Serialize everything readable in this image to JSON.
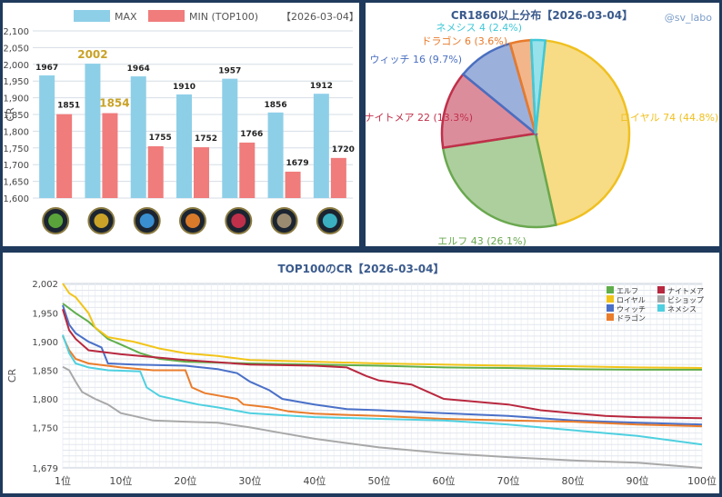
{
  "watermark": "@sv_labo",
  "bar_chart": {
    "legend_max": "MAX",
    "legend_min": "MIN (TOP100)",
    "date": "【2026-03-04】",
    "ylabel": "CR",
    "yticks": [
      "1,600",
      "1,650",
      "1,700",
      "1,750",
      "1,800",
      "1,850",
      "1,900",
      "1,950",
      "2,000",
      "2,050",
      "2,100"
    ],
    "classes": [
      "elf-icon",
      "royal-icon",
      "witch-icon",
      "dragon-icon",
      "nightmare-icon",
      "bishop-icon",
      "nemesis-icon"
    ],
    "icon_colors": [
      "#5aa33a",
      "#c9a227",
      "#3a8fd0",
      "#d97a2a",
      "#c0304a",
      "#9a8a70",
      "#3ab0c0"
    ]
  },
  "pie_chart": {
    "title": "CR1860以上分布【2026-03-04】",
    "slices": [
      {
        "label": "ロイヤル 74 (44.8%)",
        "value": 74,
        "color": "#f0c020"
      },
      {
        "label": "エルフ 43 (26.1%)",
        "value": 43,
        "color": "#6aa84f"
      },
      {
        "label": "ナイトメア 22 (13.3%)",
        "value": 22,
        "color": "#c0304a"
      },
      {
        "label": "ウィッチ 16 (9.7%)",
        "value": 16,
        "color": "#4a6fc0"
      },
      {
        "label": "ドラゴン 6 (3.6%)",
        "value": 6,
        "color": "#e87a2a"
      },
      {
        "label": "ネメシス 4 (2.4%)",
        "value": 4,
        "color": "#40c8d8"
      }
    ]
  },
  "line_chart": {
    "title": "TOP100のCR【2026-03-04】",
    "ylabel": "CR",
    "yticks": [
      "1,679",
      "1,750",
      "1,800",
      "1,850",
      "1,900",
      "1,950",
      "2,002"
    ],
    "xticks": [
      "1位",
      "10位",
      "20位",
      "30位",
      "40位",
      "50位",
      "60位",
      "70位",
      "80位",
      "90位",
      "100位"
    ],
    "legend": [
      {
        "name": "エルフ",
        "color": "#5fae4a"
      },
      {
        "name": "ナイトメア",
        "color": "#b8283e"
      },
      {
        "name": "ロイヤル",
        "color": "#f2c418"
      },
      {
        "name": "ビショップ",
        "color": "#a8a8a8"
      },
      {
        "name": "ウィッチ",
        "color": "#4a70c8"
      },
      {
        "name": "ネメシス",
        "color": "#4ed0e0"
      },
      {
        "name": "ドラゴン",
        "color": "#ea7d2c"
      }
    ]
  },
  "chart_data": [
    {
      "type": "bar",
      "title": "",
      "ylabel": "CR",
      "ylim": [
        1600,
        2100
      ],
      "categories": [
        "エルフ",
        "ロイヤル",
        "ウィッチ",
        "ドラゴン",
        "ナイトメア",
        "ビショップ",
        "ネメシス"
      ],
      "series": [
        {
          "name": "MAX",
          "color": "#8ecfe8",
          "values": [
            1967,
            2002,
            1964,
            1910,
            1957,
            1856,
            1912
          ]
        },
        {
          "name": "MIN (TOP100)",
          "color": "#f07c7c",
          "values": [
            1851,
            1854,
            1755,
            1752,
            1766,
            1679,
            1720
          ]
        }
      ],
      "highlight_color": "#c9a227",
      "legend": "top"
    },
    {
      "type": "pie",
      "title": "CR1860以上分布【2026-03-04】",
      "categories": [
        "ロイヤル",
        "エルフ",
        "ナイトメア",
        "ウィッチ",
        "ドラゴン",
        "ネメシス"
      ],
      "values": [
        74,
        43,
        22,
        16,
        6,
        4
      ],
      "percent": [
        44.8,
        26.1,
        13.3,
        9.7,
        3.6,
        2.4
      ]
    },
    {
      "type": "line",
      "title": "TOP100のCR【2026-03-04】",
      "ylabel": "CR",
      "xlim": [
        1,
        100
      ],
      "ylim": [
        1679,
        2002
      ],
      "grid": true,
      "legend": "top-right",
      "series": [
        {
          "name": "エルフ",
          "points": [
            [
              1,
              1967
            ],
            [
              3,
              1950
            ],
            [
              5,
              1935
            ],
            [
              8,
              1905
            ],
            [
              10,
              1895
            ],
            [
              13,
              1880
            ],
            [
              16,
              1870
            ],
            [
              20,
              1865
            ],
            [
              30,
              1862
            ],
            [
              40,
              1860
            ],
            [
              50,
              1858
            ],
            [
              60,
              1855
            ],
            [
              70,
              1854
            ],
            [
              80,
              1852
            ],
            [
              90,
              1851
            ],
            [
              100,
              1851
            ]
          ]
        },
        {
          "name": "ロイヤル",
          "points": [
            [
              1,
              2002
            ],
            [
              2,
              1985
            ],
            [
              3,
              1978
            ],
            [
              5,
              1950
            ],
            [
              6,
              1925
            ],
            [
              8,
              1908
            ],
            [
              12,
              1900
            ],
            [
              16,
              1888
            ],
            [
              20,
              1880
            ],
            [
              25,
              1875
            ],
            [
              30,
              1868
            ],
            [
              40,
              1865
            ],
            [
              50,
              1862
            ],
            [
              60,
              1860
            ],
            [
              70,
              1858
            ],
            [
              80,
              1857
            ],
            [
              90,
              1855
            ],
            [
              100,
              1854
            ]
          ]
        },
        {
          "name": "ウィッチ",
          "points": [
            [
              1,
              1964
            ],
            [
              2,
              1930
            ],
            [
              3,
              1915
            ],
            [
              5,
              1900
            ],
            [
              7,
              1890
            ],
            [
              8,
              1862
            ],
            [
              12,
              1860
            ],
            [
              20,
              1858
            ],
            [
              25,
              1852
            ],
            [
              28,
              1845
            ],
            [
              30,
              1830
            ],
            [
              33,
              1815
            ],
            [
              35,
              1800
            ],
            [
              40,
              1790
            ],
            [
              45,
              1782
            ],
            [
              50,
              1780
            ],
            [
              60,
              1775
            ],
            [
              70,
              1770
            ],
            [
              80,
              1762
            ],
            [
              90,
              1758
            ],
            [
              100,
              1755
            ]
          ]
        },
        {
          "name": "ドラゴン",
          "points": [
            [
              1,
              1910
            ],
            [
              2,
              1885
            ],
            [
              3,
              1870
            ],
            [
              5,
              1862
            ],
            [
              10,
              1855
            ],
            [
              15,
              1850
            ],
            [
              20,
              1850
            ],
            [
              21,
              1820
            ],
            [
              23,
              1810
            ],
            [
              28,
              1800
            ],
            [
              29,
              1790
            ],
            [
              33,
              1785
            ],
            [
              36,
              1778
            ],
            [
              40,
              1774
            ],
            [
              45,
              1772
            ],
            [
              50,
              1770
            ],
            [
              60,
              1765
            ],
            [
              70,
              1762
            ],
            [
              80,
              1760
            ],
            [
              90,
              1755
            ],
            [
              100,
              1752
            ]
          ]
        },
        {
          "name": "ナイトメア",
          "points": [
            [
              1,
              1957
            ],
            [
              2,
              1920
            ],
            [
              3,
              1905
            ],
            [
              5,
              1885
            ],
            [
              10,
              1878
            ],
            [
              20,
              1868
            ],
            [
              30,
              1860
            ],
            [
              40,
              1858
            ],
            [
              45,
              1855
            ],
            [
              48,
              1840
            ],
            [
              50,
              1832
            ],
            [
              55,
              1825
            ],
            [
              58,
              1810
            ],
            [
              60,
              1800
            ],
            [
              65,
              1795
            ],
            [
              70,
              1790
            ],
            [
              75,
              1780
            ],
            [
              80,
              1775
            ],
            [
              85,
              1770
            ],
            [
              90,
              1768
            ],
            [
              100,
              1766
            ]
          ]
        },
        {
          "name": "ビショップ",
          "points": [
            [
              1,
              1856
            ],
            [
              2,
              1850
            ],
            [
              3,
              1830
            ],
            [
              4,
              1812
            ],
            [
              6,
              1800
            ],
            [
              8,
              1790
            ],
            [
              10,
              1775
            ],
            [
              12,
              1770
            ],
            [
              15,
              1762
            ],
            [
              20,
              1760
            ],
            [
              25,
              1758
            ],
            [
              30,
              1750
            ],
            [
              35,
              1740
            ],
            [
              40,
              1730
            ],
            [
              50,
              1715
            ],
            [
              60,
              1705
            ],
            [
              70,
              1698
            ],
            [
              80,
              1692
            ],
            [
              90,
              1688
            ],
            [
              100,
              1679
            ]
          ]
        },
        {
          "name": "ネメシス",
          "points": [
            [
              1,
              1912
            ],
            [
              2,
              1880
            ],
            [
              3,
              1862
            ],
            [
              5,
              1855
            ],
            [
              8,
              1850
            ],
            [
              13,
              1848
            ],
            [
              14,
              1820
            ],
            [
              16,
              1805
            ],
            [
              20,
              1795
            ],
            [
              22,
              1790
            ],
            [
              25,
              1785
            ],
            [
              30,
              1775
            ],
            [
              40,
              1768
            ],
            [
              50,
              1765
            ],
            [
              60,
              1762
            ],
            [
              70,
              1755
            ],
            [
              80,
              1745
            ],
            [
              90,
              1735
            ],
            [
              100,
              1720
            ]
          ]
        }
      ]
    }
  ]
}
